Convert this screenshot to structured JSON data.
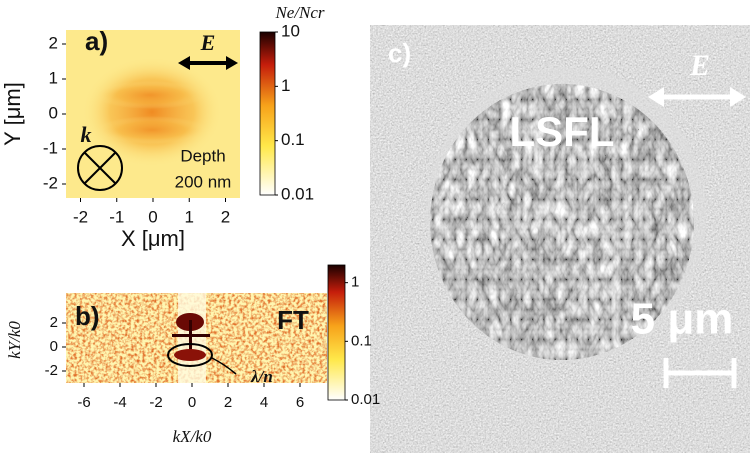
{
  "panels": [
    {
      "label": "a)",
      "type": "heatmap",
      "xlabel": "X [μm]",
      "ylabel": "Y [μm]",
      "xlim": [
        -2.4,
        2.4
      ],
      "ylim": [
        -2.4,
        2.4
      ],
      "xticks": [
        -2,
        -1,
        0,
        1,
        2
      ],
      "yticks": [
        -2,
        -1,
        0,
        1,
        2
      ],
      "colorbar": {
        "label": "Ne/Ncr",
        "scale": "log",
        "lim": [
          0.01,
          10
        ],
        "ticks": [
          0.01,
          0.1,
          1,
          10
        ]
      },
      "annotations": {
        "field": "E",
        "wavevector": "k",
        "depth_title": "Depth",
        "depth_value": "200 nm"
      }
    },
    {
      "label": "b)",
      "type": "heatmap",
      "xlabel": "kX/k0",
      "ylabel": "kY/k0",
      "xlim": [
        -7,
        7.5
      ],
      "ylim": [
        -3,
        4.5
      ],
      "xticks": [
        -6,
        -4,
        -2,
        0,
        2,
        4,
        6
      ],
      "yticks": [
        -2,
        0,
        2
      ],
      "colorbar": {
        "label": null,
        "scale": "log",
        "lim": [
          0.01,
          2
        ],
        "ticks": [
          0.01,
          0.1,
          1
        ]
      },
      "annotations": {
        "transform": "FT",
        "period": "λ/n"
      }
    },
    {
      "label": "c)",
      "type": "image",
      "annotations": {
        "field": "E",
        "structure": "LSFL",
        "scale_bar": "5 μm"
      }
    }
  ]
}
